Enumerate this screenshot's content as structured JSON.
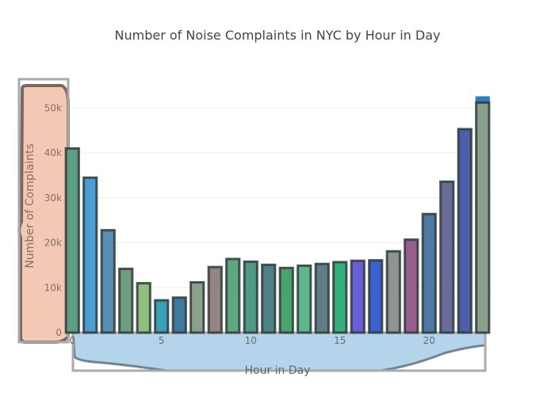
{
  "chart_data": {
    "type": "bar",
    "title": "Number of Noise Complaints in NYC by Hour in Day",
    "xlabel": "Hour in Day",
    "ylabel": "Number of Complaints",
    "x": [
      0,
      1,
      2,
      3,
      4,
      5,
      6,
      7,
      8,
      9,
      10,
      11,
      12,
      13,
      14,
      15,
      16,
      17,
      18,
      19,
      20,
      21,
      22,
      23
    ],
    "values": [
      41000,
      34500,
      22800,
      14200,
      11000,
      7200,
      7800,
      11200,
      14600,
      16400,
      15800,
      15100,
      14400,
      14900,
      15300,
      15700,
      16000,
      16100,
      18100,
      20700,
      26400,
      33600,
      45300,
      51200
    ],
    "colors": [
      "#5f9e85",
      "#4c9dd4",
      "#5a8fb5",
      "#6e9e7f",
      "#8fbf7f",
      "#3aa0b8",
      "#3e7ba0",
      "#8aa08a",
      "#948484",
      "#5fa87f",
      "#4f9a86",
      "#4f8282",
      "#48a46a",
      "#5cb88a",
      "#607e87",
      "#33b07c",
      "#6a5fd8",
      "#3d5fd0",
      "#8e958e",
      "#985e8e",
      "#4d79a4",
      "#6b6b98",
      "#4e5eaa",
      "#8aa08a"
    ],
    "xticks": [
      "0",
      "5",
      "10",
      "15",
      "20"
    ],
    "yticks": [
      "0",
      "10k",
      "20k",
      "30k",
      "40k",
      "50k"
    ],
    "ylim": [
      0,
      55000
    ],
    "xlim": [
      -0.5,
      23.5
    ],
    "grid": "horizontal",
    "colors_meta": {
      "bar_stroke": "#2e3a3a",
      "ylabel_bg": "#f3c9b6",
      "xlabel_bg": "#b4d4ec",
      "highlight": "#2a7dc0"
    }
  }
}
